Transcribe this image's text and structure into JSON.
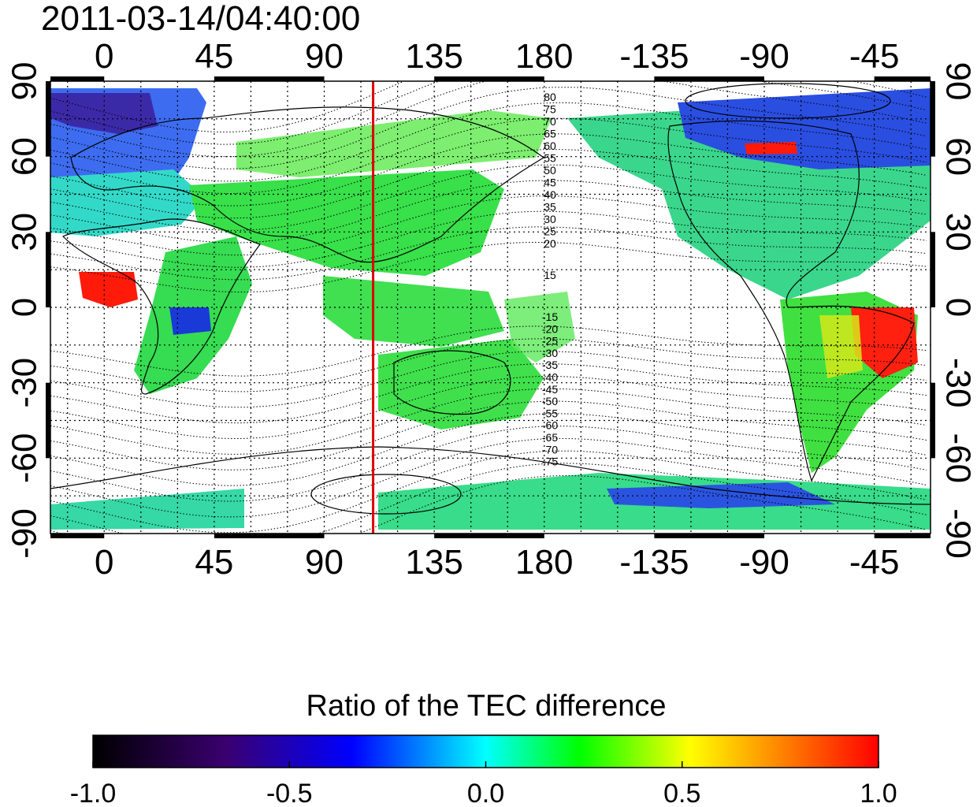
{
  "title": "2011-03-14/04:40:00",
  "map": {
    "lon_ticks": [
      "0",
      "45",
      "90",
      "135",
      "180",
      "-135",
      "-90",
      "-45"
    ],
    "lat_ticks": [
      "90",
      "60",
      "30",
      "0",
      "-30",
      "-60",
      "-90"
    ],
    "contour_labels_north": [
      "80",
      "75",
      "70",
      "65",
      "60",
      "55",
      "50",
      "45",
      "40",
      "35",
      "30",
      "25",
      "20",
      "15"
    ],
    "contour_labels_south": [
      "-15",
      "-20",
      "-25",
      "-30",
      "-35",
      "-40",
      "-45",
      "-50",
      "-55",
      "-60",
      "-65",
      "-70",
      "-75"
    ],
    "meridian_marker_lon": 110,
    "marker_color": "#dd0000"
  },
  "colorbar": {
    "title": "Ratio of the TEC difference",
    "tick_labels": [
      "-1.0",
      "-0.5",
      "0.0",
      "0.5",
      "1.0"
    ],
    "range": [
      -1.0,
      1.0
    ],
    "colors": [
      "#000000",
      "#3a0070",
      "#0000ff",
      "#00ffff",
      "#00ff00",
      "#ffff00",
      "#ff0000"
    ]
  }
}
